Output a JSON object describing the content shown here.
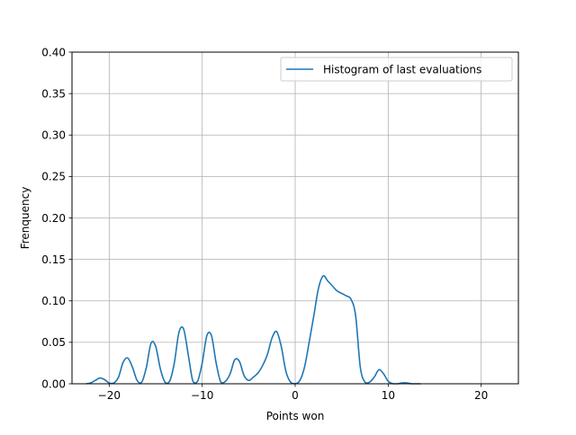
{
  "chart_data": {
    "type": "line",
    "title": "",
    "xlabel": "Points won",
    "ylabel": "Frenquency",
    "xlim": [
      -24,
      24
    ],
    "ylim": [
      0,
      0.4
    ],
    "xticks": [
      -20,
      -10,
      0,
      10,
      20
    ],
    "xtick_labels": [
      "−20",
      "−10",
      "0",
      "10",
      "20"
    ],
    "yticks": [
      0.0,
      0.05,
      0.1,
      0.15,
      0.2,
      0.25,
      0.3,
      0.35,
      0.4
    ],
    "ytick_labels": [
      "0.00",
      "0.05",
      "0.10",
      "0.15",
      "0.20",
      "0.25",
      "0.30",
      "0.35",
      "0.40"
    ],
    "grid": true,
    "legend_position": "top-right",
    "series": [
      {
        "name": "Histogram of last evaluations",
        "color": "#1f77b4",
        "x": [
          -22.5,
          -22,
          -21.5,
          -21,
          -20.5,
          -20,
          -19.5,
          -19,
          -18.5,
          -18,
          -17.5,
          -17,
          -16.5,
          -16,
          -15.5,
          -15,
          -14.5,
          -14,
          -13.5,
          -13,
          -12.5,
          -12,
          -11.5,
          -11,
          -10.5,
          -10,
          -9.5,
          -9,
          -8.5,
          -8,
          -7.5,
          -7,
          -6.5,
          -6,
          -5.5,
          -5,
          -4.5,
          -4,
          -3.5,
          -3,
          -2.5,
          -2,
          -1.5,
          -1,
          -0.5,
          0,
          0.5,
          1,
          1.5,
          2,
          2.5,
          3,
          3.5,
          4,
          4.5,
          5,
          5.5,
          6,
          6.5,
          7,
          7.5,
          8,
          8.5,
          9,
          9.5,
          10,
          10.5,
          11,
          11.5,
          12,
          12.5,
          13,
          13.5
        ],
        "values": [
          0.0,
          0.001,
          0.004,
          0.007,
          0.005,
          0.001,
          0.001,
          0.008,
          0.026,
          0.031,
          0.02,
          0.004,
          0.002,
          0.02,
          0.049,
          0.045,
          0.018,
          0.002,
          0.003,
          0.025,
          0.062,
          0.066,
          0.035,
          0.003,
          0.003,
          0.025,
          0.058,
          0.058,
          0.025,
          0.002,
          0.003,
          0.012,
          0.029,
          0.027,
          0.01,
          0.004,
          0.008,
          0.013,
          0.022,
          0.035,
          0.055,
          0.063,
          0.045,
          0.015,
          0.002,
          0.0,
          0.004,
          0.02,
          0.05,
          0.082,
          0.115,
          0.13,
          0.124,
          0.118,
          0.112,
          0.109,
          0.106,
          0.102,
          0.082,
          0.02,
          0.002,
          0.002,
          0.008,
          0.017,
          0.012,
          0.003,
          0.0,
          0.0,
          0.001,
          0.001,
          0.0,
          0.0,
          0.0
        ]
      }
    ]
  }
}
